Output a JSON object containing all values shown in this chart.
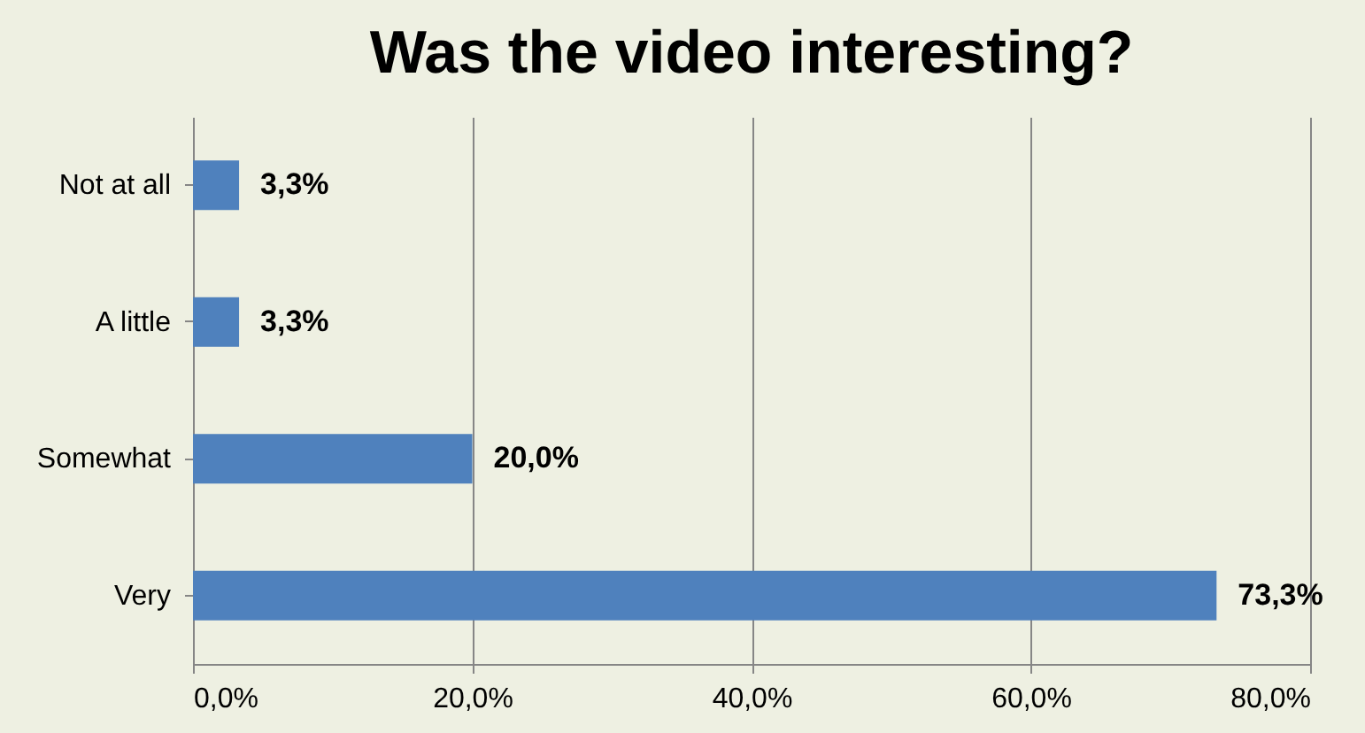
{
  "chart_data": {
    "type": "bar",
    "orientation": "horizontal",
    "title": "Was the video interesting?",
    "categories": [
      "Not at all",
      "A little",
      "Somewhat",
      "Very"
    ],
    "values": [
      3.3,
      3.3,
      20.0,
      73.3
    ],
    "value_labels": [
      "3,3%",
      "3,3%",
      "20,0%",
      "73,3%"
    ],
    "color": "#4f81bd",
    "xlim": [
      0,
      80
    ],
    "xticks": [
      {
        "value": 0,
        "label": "0,0%"
      },
      {
        "value": 20,
        "label": "20,0%"
      },
      {
        "value": 40,
        "label": "40,0%"
      },
      {
        "value": 60,
        "label": "60,0%"
      },
      {
        "value": 80,
        "label": "80,0%"
      }
    ],
    "grid": "x"
  }
}
